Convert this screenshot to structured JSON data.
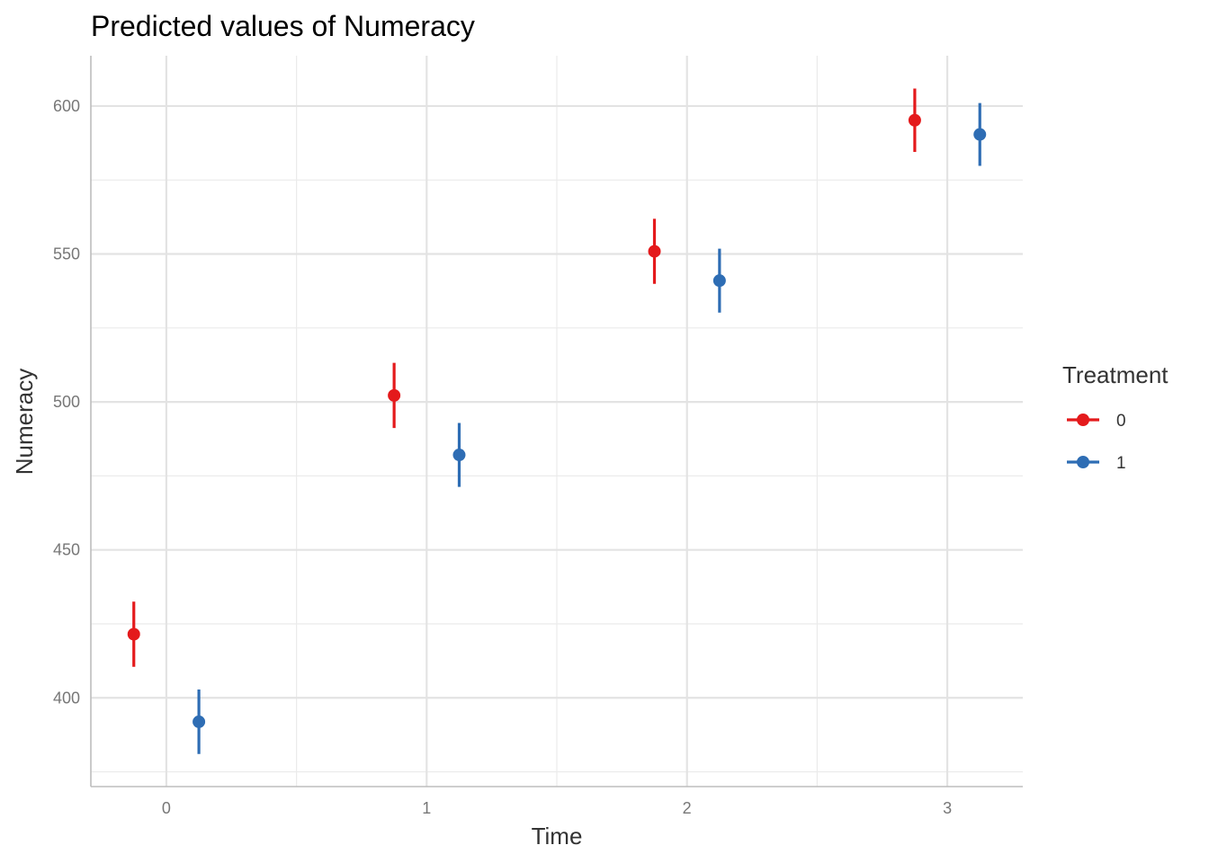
{
  "chart_data": {
    "type": "scatter",
    "subtype": "point-range",
    "title": "Predicted values of Numeracy",
    "xlabel": "Time",
    "ylabel": "Numeracy",
    "x_ticks": [
      "0",
      "1",
      "2",
      "3"
    ],
    "y_ticks": [
      "400",
      "450",
      "500",
      "550",
      "600"
    ],
    "xlim": [
      -0.29,
      3.29
    ],
    "ylim": [
      370,
      617
    ],
    "grid": true,
    "legend": {
      "title": "Treatment",
      "position": "right"
    },
    "series": [
      {
        "name": "0",
        "color": "#E41A1C",
        "x": [
          0,
          1,
          2,
          3
        ],
        "y": [
          421.5,
          502.2,
          550.9,
          595.2
        ],
        "lower": [
          410.5,
          491.2,
          539.9,
          584.5
        ],
        "upper": [
          432.5,
          513.2,
          561.9,
          605.9
        ]
      },
      {
        "name": "1",
        "color": "#2E6DB4",
        "x": [
          0,
          1,
          2,
          3
        ],
        "y": [
          391.9,
          482.1,
          541.0,
          590.4
        ],
        "lower": [
          381.0,
          471.3,
          530.2,
          579.8
        ],
        "upper": [
          402.8,
          492.9,
          551.8,
          601.0
        ]
      }
    ]
  }
}
